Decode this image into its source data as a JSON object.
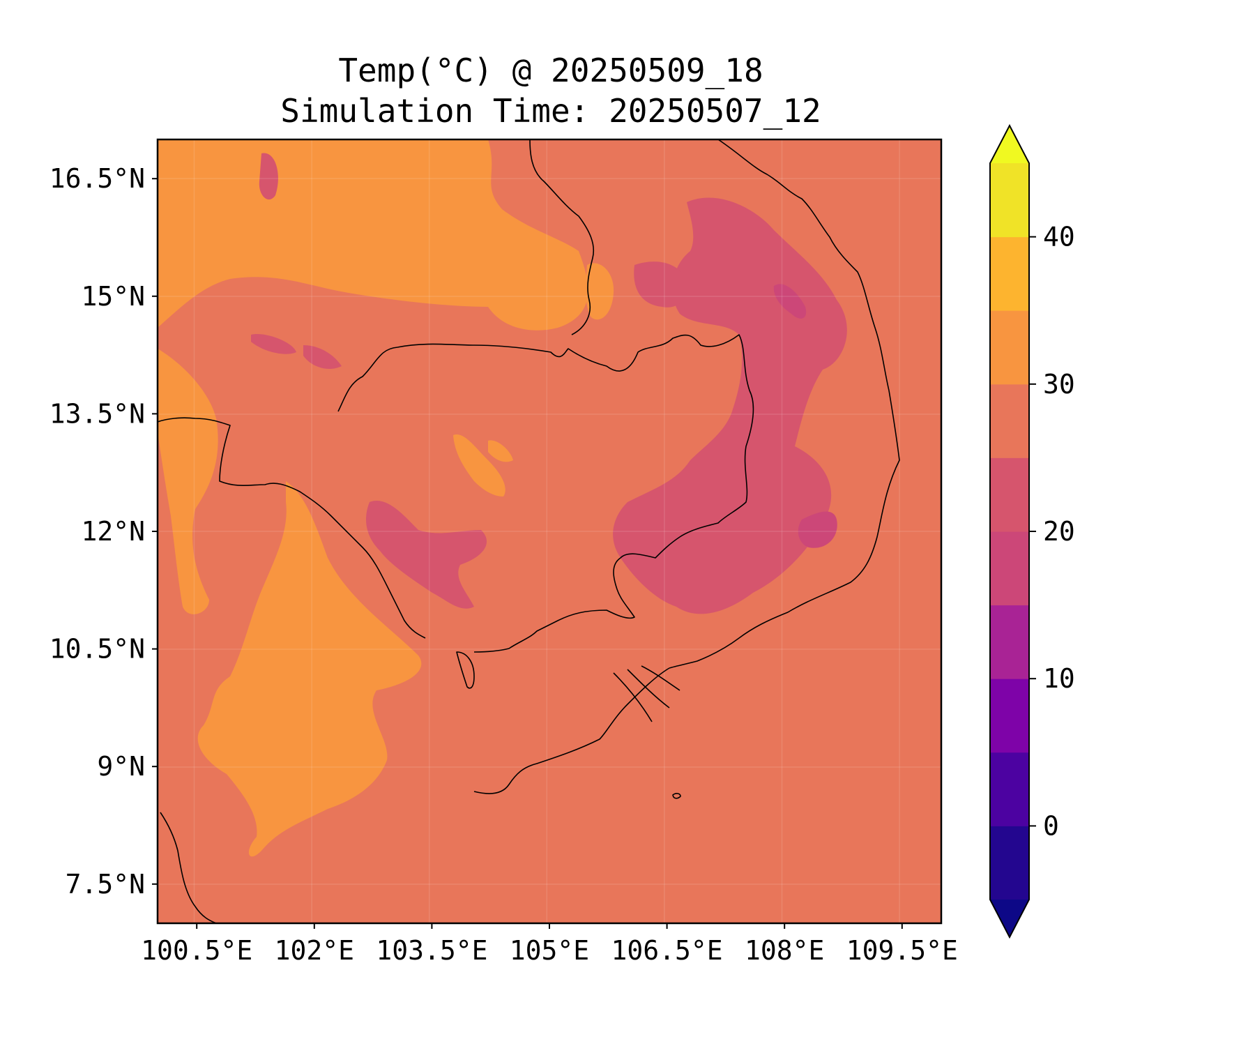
{
  "title": {
    "line1": "Temp(°C) @ 20250509_18",
    "line2": "Simulation Time: 20250507_12"
  },
  "map": {
    "variable": "Temp(°C)",
    "lon_range": [
      100.0,
      110.0
    ],
    "lat_range": [
      7.0,
      17.0
    ],
    "x_ticks": [
      {
        "value": 100.5,
        "label": "100.5°E"
      },
      {
        "value": 102.0,
        "label": "102°E"
      },
      {
        "value": 103.5,
        "label": "103.5°E"
      },
      {
        "value": 105.0,
        "label": "105°E"
      },
      {
        "value": 106.5,
        "label": "106.5°E"
      },
      {
        "value": 108.0,
        "label": "108°E"
      },
      {
        "value": 109.5,
        "label": "109.5°E"
      }
    ],
    "y_ticks": [
      {
        "value": 16.5,
        "label": "16.5°N"
      },
      {
        "value": 15.0,
        "label": "15°N"
      },
      {
        "value": 13.5,
        "label": "13.5°N"
      },
      {
        "value": 12.0,
        "label": "12°N"
      },
      {
        "value": 10.5,
        "label": "10.5°N"
      },
      {
        "value": 9.0,
        "label": "9°N"
      },
      {
        "value": 7.5,
        "label": "7.5°N"
      }
    ],
    "gridlines": true,
    "background_color": "#e8765a"
  },
  "colorbar": {
    "levels": [
      -5,
      0,
      5,
      10,
      15,
      20,
      25,
      30,
      35,
      40,
      45
    ],
    "colors": [
      "#23068f",
      "#4c02a1",
      "#7e03a8",
      "#a92395",
      "#cc4778",
      "#d6556d",
      "#e8765a",
      "#f89540",
      "#fdb42f",
      "#f0e327"
    ],
    "extend_under_color": "#0d0887",
    "extend_over_color": "#f0f921",
    "ticks": [
      {
        "value": 0,
        "label": "0"
      },
      {
        "value": 10,
        "label": "10"
      },
      {
        "value": 20,
        "label": "20"
      },
      {
        "value": 30,
        "label": "30"
      },
      {
        "value": 40,
        "label": "40"
      }
    ]
  }
}
